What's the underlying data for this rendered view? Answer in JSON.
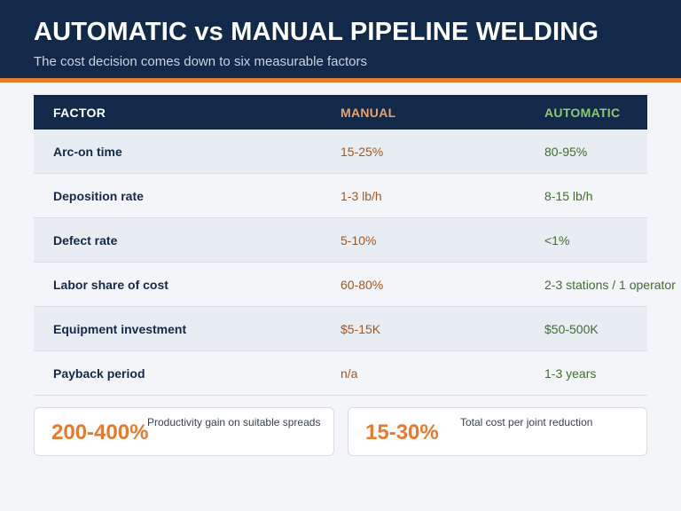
{
  "header": {
    "title": "AUTOMATIC vs MANUAL PIPELINE WELDING",
    "subtitle": "The cost decision comes down to six measurable factors"
  },
  "table": {
    "columns": [
      "FACTOR",
      "MANUAL",
      "AUTOMATIC"
    ],
    "rows": [
      {
        "factor": "Arc-on time",
        "manual": "15-25%",
        "automatic": "80-95%"
      },
      {
        "factor": "Deposition rate",
        "manual": "1-3 lb/h",
        "automatic": "8-15 lb/h"
      },
      {
        "factor": "Defect rate",
        "manual": "5-10%",
        "automatic": "<1%"
      },
      {
        "factor": "Labor share of cost",
        "manual": "60-80%",
        "automatic": "2-3 stations / 1 operator"
      },
      {
        "factor": "Equipment investment",
        "manual": "$5-15K",
        "automatic": "$50-500K"
      },
      {
        "factor": "Payback period",
        "manual": "n/a",
        "automatic": "1-3 years"
      }
    ]
  },
  "cards": [
    {
      "value": "200-400%",
      "label": "Productivity gain on suitable spreads"
    },
    {
      "value": "15-30%",
      "label": "Total cost per joint reduction"
    }
  ],
  "colors": {
    "navy": "#13294a",
    "accent_orange": "#e87a2c",
    "manual_text": "#a4571f",
    "automatic_text": "#3f6e2e"
  }
}
